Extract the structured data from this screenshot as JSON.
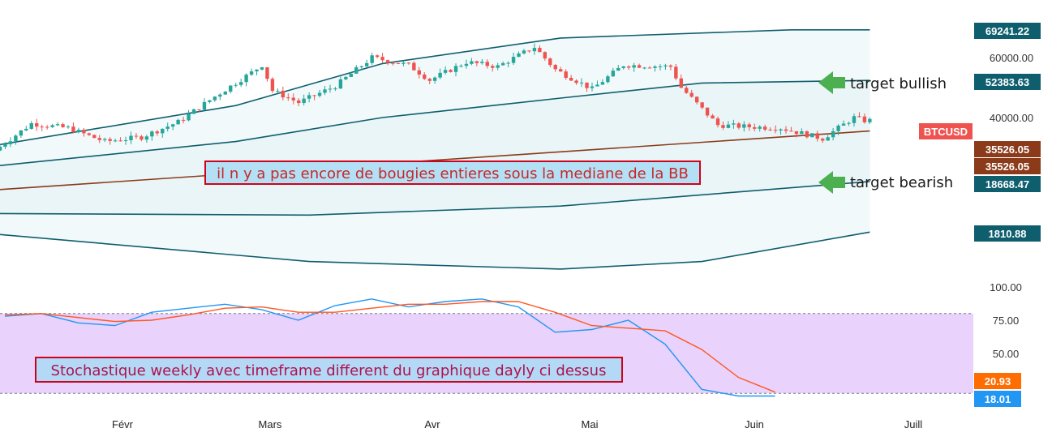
{
  "chart_data": [
    {
      "type": "candlestick",
      "symbol_label": "BTCUSD",
      "colors": {
        "up": "#26a69a",
        "down": "#ef5350",
        "median": "#8b3a1a",
        "bands": "#0f5e6e",
        "band_fill": "#e9f5f6"
      },
      "x_ticks": [
        "Févr",
        "Mars",
        "Avr",
        "Mai",
        "Juin",
        "Juill"
      ],
      "y_ticks": [
        "60000.00",
        "40000.00"
      ],
      "price_badges": [
        {
          "label": "69241.22",
          "value": 69241.22,
          "color": "#0f5e6e"
        },
        {
          "label": "52383.63",
          "value": 52383.63,
          "color": "#0f5e6e"
        },
        {
          "label": "35526.05",
          "value": 35526.05,
          "color": "#8b3a1a"
        },
        {
          "label": "35526.05",
          "value": 35526.05,
          "color": "#8b3a1a"
        },
        {
          "label": "18668.47",
          "value": 18668.47,
          "color": "#0f5e6e"
        },
        {
          "label": "1810.88",
          "value": 1810.88,
          "color": "#0f5e6e"
        }
      ],
      "candle_path": [
        [
          "2021-01-01",
          29000
        ],
        [
          "2021-01-08",
          38000
        ],
        [
          "2021-01-15",
          36500
        ],
        [
          "2021-01-22",
          32000
        ],
        [
          "2021-01-29",
          33500
        ],
        [
          "2021-02-05",
          38500
        ],
        [
          "2021-02-12",
          47000
        ],
        [
          "2021-02-19",
          55000
        ],
        [
          "2021-02-21",
          57500
        ],
        [
          "2021-02-23",
          49000
        ],
        [
          "2021-02-28",
          45000
        ],
        [
          "2021-03-07",
          50500
        ],
        [
          "2021-03-14",
          60000
        ],
        [
          "2021-03-21",
          57500
        ],
        [
          "2021-03-25",
          52500
        ],
        [
          "2021-04-01",
          58500
        ],
        [
          "2021-04-07",
          57000
        ],
        [
          "2021-04-14",
          63500
        ],
        [
          "2021-04-18",
          56000
        ],
        [
          "2021-04-25",
          49500
        ],
        [
          "2021-05-01",
          57500
        ],
        [
          "2021-05-10",
          57000
        ],
        [
          "2021-05-12",
          50000
        ],
        [
          "2021-05-19",
          37500
        ],
        [
          "2021-05-24",
          37000
        ],
        [
          "2021-05-31",
          36500
        ],
        [
          "2021-06-08",
          33000
        ],
        [
          "2021-06-14",
          40000
        ],
        [
          "2021-06-16",
          39000
        ]
      ],
      "bollinger_bands": {
        "upper2": [
          [
            "2021-01-01",
            31000
          ],
          [
            "2021-02-15",
            44000
          ],
          [
            "2021-03-15",
            58000
          ],
          [
            "2021-04-18",
            66500
          ],
          [
            "2021-06-01",
            69241.22
          ],
          [
            "2021-06-16",
            69241.22
          ]
        ],
        "upper1": [
          [
            "2021-01-01",
            24000
          ],
          [
            "2021-02-15",
            32000
          ],
          [
            "2021-03-15",
            40000
          ],
          [
            "2021-04-18",
            46500
          ],
          [
            "2021-05-15",
            51500
          ],
          [
            "2021-06-16",
            52383.63
          ]
        ],
        "median": [
          [
            "2021-01-01",
            16000
          ],
          [
            "2021-06-16",
            35526.05
          ]
        ],
        "lower1": [
          [
            "2021-01-01",
            8000
          ],
          [
            "2021-03-01",
            7500
          ],
          [
            "2021-04-18",
            10500
          ],
          [
            "2021-06-16",
            18668.47
          ]
        ],
        "lower2": [
          [
            "2021-01-01",
            1000
          ],
          [
            "2021-03-01",
            -8000
          ],
          [
            "2021-04-18",
            -10500
          ],
          [
            "2021-05-15",
            -8000
          ],
          [
            "2021-06-16",
            1810.88
          ]
        ]
      },
      "annotations": [
        {
          "text": "il n y a pas encore de bougies entieres sous la mediane de la BB"
        },
        {
          "text": "target bullish"
        },
        {
          "text": "target bearish"
        }
      ]
    },
    {
      "type": "line",
      "y_ticks": [
        "100.00",
        "75.00",
        "50.00"
      ],
      "ylim": [
        0,
        100
      ],
      "band": [
        20,
        80
      ],
      "series": [
        {
          "color": "#2196f3",
          "points": [
            [
              "2021-01-01",
              78
            ],
            [
              "2021-01-08",
              80
            ],
            [
              "2021-01-15",
              73
            ],
            [
              "2021-01-22",
              71
            ],
            [
              "2021-01-29",
              81
            ],
            [
              "2021-02-05",
              84
            ],
            [
              "2021-02-12",
              87
            ],
            [
              "2021-02-19",
              83
            ],
            [
              "2021-02-26",
              75
            ],
            [
              "2021-03-05",
              86
            ],
            [
              "2021-03-12",
              91
            ],
            [
              "2021-03-19",
              85
            ],
            [
              "2021-03-26",
              89
            ],
            [
              "2021-04-02",
              91
            ],
            [
              "2021-04-09",
              85
            ],
            [
              "2021-04-16",
              66
            ],
            [
              "2021-04-23",
              68
            ],
            [
              "2021-04-30",
              75
            ],
            [
              "2021-05-07",
              57
            ],
            [
              "2021-05-14",
              23
            ],
            [
              "2021-05-21",
              18.01
            ],
            [
              "2021-05-28",
              18.01
            ]
          ]
        },
        {
          "color": "#ff5722",
          "points": [
            [
              "2021-01-01",
              79
            ],
            [
              "2021-01-08",
              80
            ],
            [
              "2021-01-15",
              77
            ],
            [
              "2021-01-22",
              74
            ],
            [
              "2021-01-29",
              75
            ],
            [
              "2021-02-05",
              79
            ],
            [
              "2021-02-12",
              84
            ],
            [
              "2021-02-19",
              85
            ],
            [
              "2021-02-26",
              81
            ],
            [
              "2021-03-05",
              81
            ],
            [
              "2021-03-12",
              84
            ],
            [
              "2021-03-19",
              87
            ],
            [
              "2021-03-26",
              87
            ],
            [
              "2021-04-02",
              89
            ],
            [
              "2021-04-09",
              89
            ],
            [
              "2021-04-16",
              81
            ],
            [
              "2021-04-23",
              71
            ],
            [
              "2021-04-30",
              69
            ],
            [
              "2021-05-07",
              67
            ],
            [
              "2021-05-14",
              53
            ],
            [
              "2021-05-21",
              32
            ],
            [
              "2021-05-28",
              20.93
            ]
          ]
        }
      ],
      "badges": [
        {
          "label": "20.93",
          "value": 20.93,
          "color": "#ff6d00"
        },
        {
          "label": "18.01",
          "value": 18.01,
          "color": "#2196f3"
        }
      ],
      "annotation": "Stochastique weekly avec timeframe different du graphique dayly ci dessus"
    }
  ]
}
